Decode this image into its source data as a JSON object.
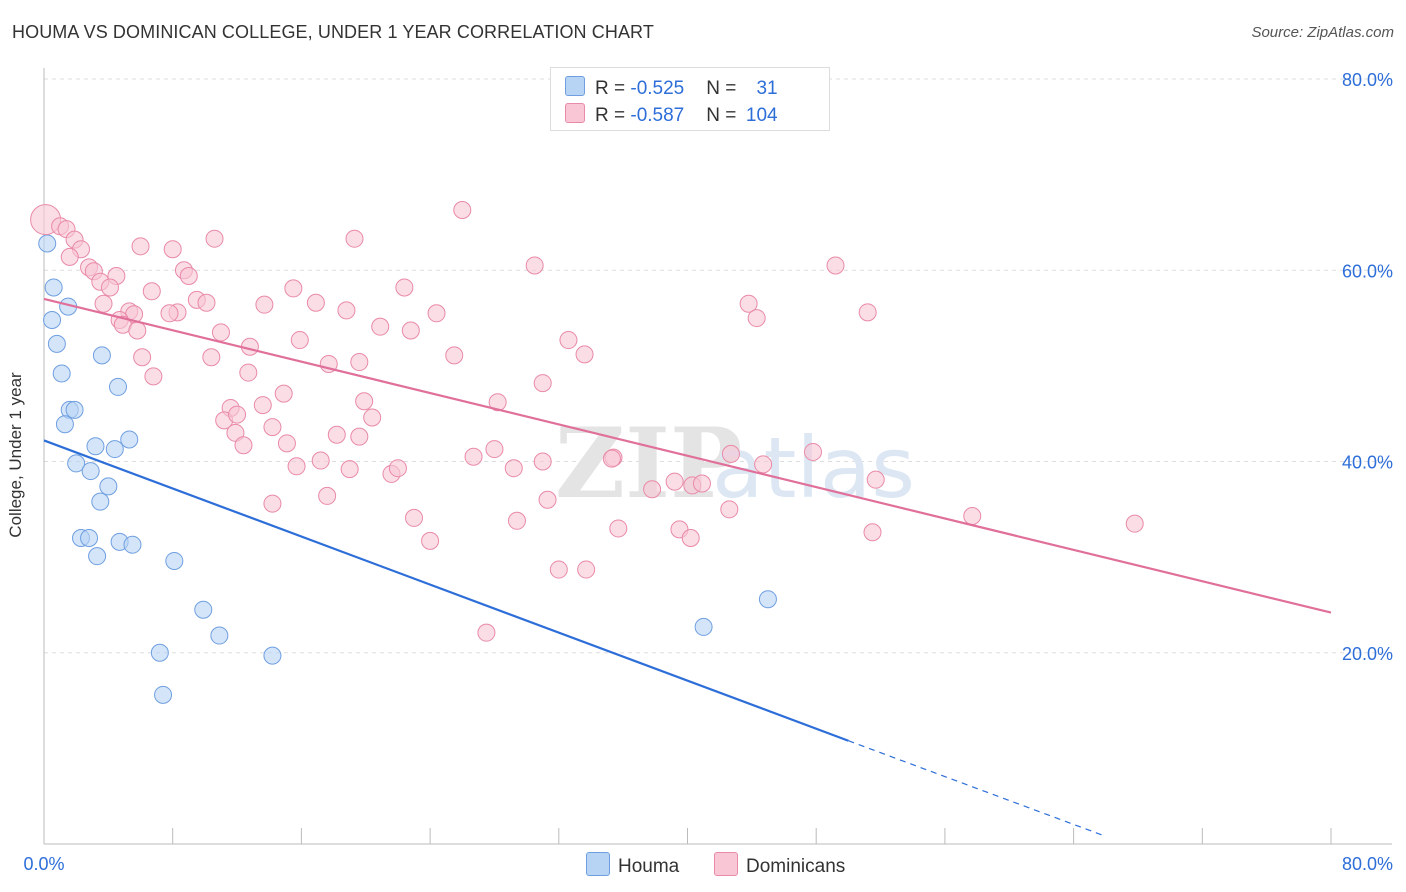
{
  "header": {
    "title": "HOUMA VS DOMINICAN COLLEGE, UNDER 1 YEAR CORRELATION CHART",
    "source": "Source: ZipAtlas.com"
  },
  "legend": {
    "houma": {
      "r_label": "R = ",
      "r_value": "-0.525",
      "n_label": "N = ",
      "n_value": "31"
    },
    "dominicans": {
      "r_label": "R = ",
      "r_value": "-0.587",
      "n_label": "N = ",
      "n_value": "104"
    }
  },
  "bottom_legend": {
    "houma": "Houma",
    "dominicans": "Dominicans"
  },
  "colors": {
    "houma_fill": "#b8d4f5",
    "houma_stroke": "#6f9fe0",
    "houma_line": "#2d6ed8",
    "dom_fill": "#f8c6d5",
    "dom_stroke": "#e98aa8",
    "dom_line": "#e0709a",
    "accent_text": "#2d6ed8",
    "grid": "#dddddd"
  },
  "chart_data": {
    "type": "scatter",
    "title": "HOUMA VS DOMINICAN COLLEGE, UNDER 1 YEAR CORRELATION CHART",
    "xlabel": "",
    "ylabel": "College, Under 1 year",
    "xlim": [
      0,
      80
    ],
    "ylim": [
      0,
      80
    ],
    "x_tick_labels": [
      "0.0%",
      "80.0%"
    ],
    "y_ticks": [
      {
        "value": 20,
        "label": "20.0%"
      },
      {
        "value": 40,
        "label": "40.0%"
      },
      {
        "value": 60,
        "label": "60.0%"
      },
      {
        "value": 80,
        "label": "80.0%"
      }
    ],
    "watermark": {
      "zip": "ZIP",
      "atlas": "atlas"
    },
    "series": [
      {
        "name": "Houma",
        "r": -0.525,
        "n": 31,
        "points": [
          [
            0.2,
            62.8
          ],
          [
            0.6,
            58.2
          ],
          [
            1.5,
            56.2
          ],
          [
            0.5,
            54.8
          ],
          [
            0.8,
            52.3
          ],
          [
            3.6,
            51.1
          ],
          [
            1.1,
            49.2
          ],
          [
            4.6,
            47.8
          ],
          [
            1.6,
            45.4
          ],
          [
            1.9,
            45.4
          ],
          [
            1.3,
            43.9
          ],
          [
            5.3,
            42.3
          ],
          [
            3.2,
            41.6
          ],
          [
            4.4,
            41.3
          ],
          [
            2.0,
            39.8
          ],
          [
            2.9,
            39.0
          ],
          [
            4.0,
            37.4
          ],
          [
            3.5,
            35.8
          ],
          [
            2.3,
            32.0
          ],
          [
            2.8,
            32.0
          ],
          [
            4.7,
            31.6
          ],
          [
            5.5,
            31.3
          ],
          [
            3.3,
            30.1
          ],
          [
            8.1,
            29.6
          ],
          [
            9.9,
            24.5
          ],
          [
            10.9,
            21.8
          ],
          [
            7.2,
            20.0
          ],
          [
            14.2,
            19.7
          ],
          [
            7.4,
            15.6
          ],
          [
            41.0,
            22.7
          ],
          [
            45.0,
            25.6
          ]
        ],
        "trend": {
          "x0": 0,
          "y0": 42.2,
          "x1": 50,
          "y1": 10.8
        },
        "trend_dashed": {
          "x0": 50,
          "y0": 10.8,
          "x1": 66,
          "y1": 0.8
        }
      },
      {
        "name": "Dominicans",
        "r": -0.587,
        "n": 104,
        "points": [
          [
            0.1,
            65.3
          ],
          [
            1.0,
            64.6
          ],
          [
            1.4,
            64.3
          ],
          [
            1.9,
            63.2
          ],
          [
            2.3,
            62.2
          ],
          [
            1.6,
            61.4
          ],
          [
            2.8,
            60.3
          ],
          [
            3.1,
            59.9
          ],
          [
            4.5,
            59.4
          ],
          [
            3.5,
            58.8
          ],
          [
            4.1,
            58.2
          ],
          [
            3.7,
            56.5
          ],
          [
            5.3,
            55.7
          ],
          [
            5.6,
            55.4
          ],
          [
            4.7,
            54.8
          ],
          [
            4.9,
            54.3
          ],
          [
            5.8,
            53.7
          ],
          [
            6.1,
            50.9
          ],
          [
            6.8,
            48.9
          ],
          [
            6.0,
            62.5
          ],
          [
            8.0,
            62.2
          ],
          [
            10.6,
            63.3
          ],
          [
            6.7,
            57.8
          ],
          [
            8.7,
            60.0
          ],
          [
            9.0,
            59.4
          ],
          [
            8.3,
            55.6
          ],
          [
            7.8,
            55.5
          ],
          [
            9.5,
            56.9
          ],
          [
            10.1,
            56.6
          ],
          [
            11.0,
            53.5
          ],
          [
            10.4,
            50.9
          ],
          [
            12.8,
            52.0
          ],
          [
            12.7,
            49.3
          ],
          [
            13.7,
            56.4
          ],
          [
            15.5,
            58.1
          ],
          [
            15.9,
            52.7
          ],
          [
            16.9,
            56.6
          ],
          [
            18.8,
            55.8
          ],
          [
            19.3,
            63.3
          ],
          [
            20.9,
            54.1
          ],
          [
            22.4,
            58.2
          ],
          [
            22.8,
            53.7
          ],
          [
            24.4,
            55.5
          ],
          [
            25.5,
            51.1
          ],
          [
            17.7,
            50.2
          ],
          [
            19.6,
            50.4
          ],
          [
            11.6,
            45.6
          ],
          [
            11.2,
            44.3
          ],
          [
            12.0,
            44.9
          ],
          [
            11.9,
            43.0
          ],
          [
            12.4,
            41.7
          ],
          [
            13.6,
            45.9
          ],
          [
            14.2,
            43.6
          ],
          [
            14.9,
            47.1
          ],
          [
            15.1,
            41.9
          ],
          [
            15.7,
            39.5
          ],
          [
            17.2,
            40.1
          ],
          [
            18.2,
            42.8
          ],
          [
            19.0,
            39.2
          ],
          [
            19.9,
            46.3
          ],
          [
            20.4,
            44.6
          ],
          [
            19.6,
            42.6
          ],
          [
            21.6,
            38.7
          ],
          [
            22.0,
            39.3
          ],
          [
            17.6,
            36.4
          ],
          [
            14.2,
            35.6
          ],
          [
            23.0,
            34.1
          ],
          [
            24.0,
            31.7
          ],
          [
            26.0,
            66.3
          ],
          [
            28.2,
            46.2
          ],
          [
            26.7,
            40.5
          ],
          [
            28.0,
            41.3
          ],
          [
            29.2,
            39.3
          ],
          [
            29.4,
            33.8
          ],
          [
            30.5,
            60.5
          ],
          [
            31.0,
            48.2
          ],
          [
            31.0,
            40.0
          ],
          [
            31.3,
            36.0
          ],
          [
            32.6,
            52.7
          ],
          [
            33.6,
            51.2
          ],
          [
            32.0,
            28.7
          ],
          [
            33.7,
            28.7
          ],
          [
            35.4,
            40.4
          ],
          [
            35.3,
            40.3
          ],
          [
            35.7,
            33.0
          ],
          [
            37.8,
            37.1
          ],
          [
            39.2,
            37.9
          ],
          [
            39.5,
            32.9
          ],
          [
            40.3,
            37.5
          ],
          [
            40.9,
            37.7
          ],
          [
            40.2,
            32.0
          ],
          [
            27.5,
            22.1
          ],
          [
            42.6,
            35.0
          ],
          [
            43.8,
            56.5
          ],
          [
            44.3,
            55.0
          ],
          [
            44.7,
            39.7
          ],
          [
            47.8,
            41.0
          ],
          [
            49.2,
            60.5
          ],
          [
            51.2,
            55.6
          ],
          [
            51.7,
            38.1
          ],
          [
            51.5,
            32.6
          ],
          [
            57.7,
            34.3
          ],
          [
            67.8,
            33.5
          ],
          [
            42.7,
            40.8
          ]
        ],
        "trend": {
          "x0": 0,
          "y0": 57.0,
          "x1": 80,
          "y1": 24.2
        }
      }
    ]
  }
}
